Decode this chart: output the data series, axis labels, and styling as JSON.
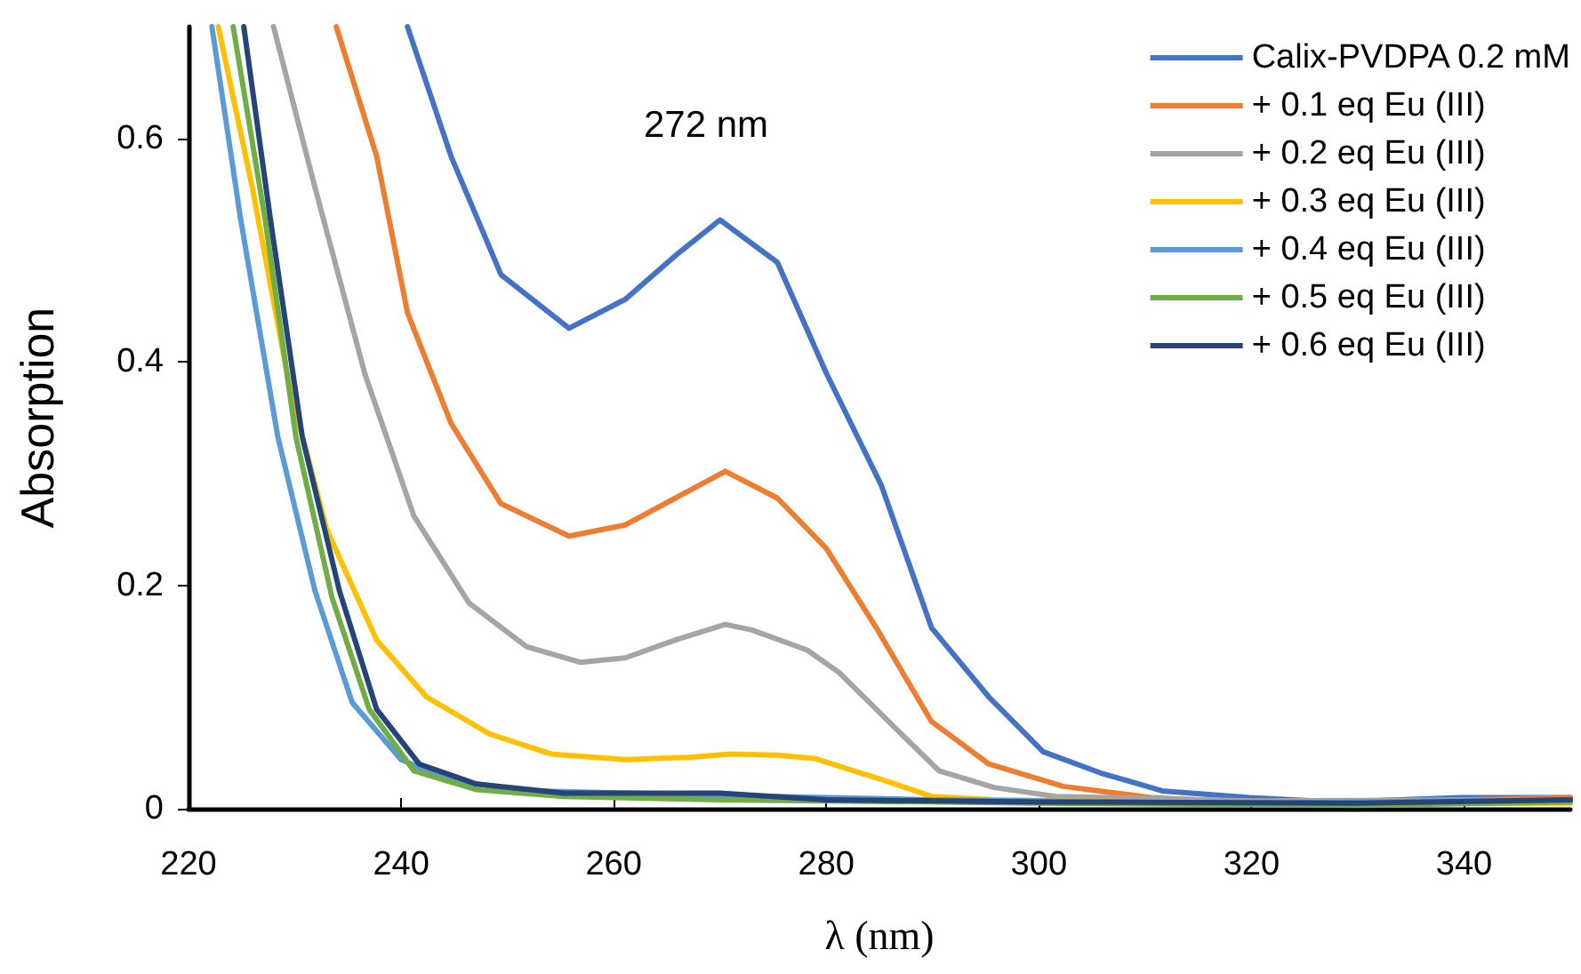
{
  "chart_data": {
    "type": "line",
    "xlabel": "λ (nm)",
    "ylabel": "Absorption",
    "xlim": [
      220,
      350
    ],
    "xticks": [
      220,
      240,
      260,
      280,
      300,
      320,
      340
    ],
    "ylim": [
      0,
      0.7
    ],
    "yticks": [
      0,
      0.2,
      0.4,
      0.6
    ],
    "grid": false,
    "legend": "top right",
    "marker": "none",
    "line_style": "solid",
    "annotations": [
      "272 nm"
    ],
    "series": [
      {
        "name": "Calix-PVDPA 0.2 mM",
        "color": "#4472c4",
        "x": [
          240.6,
          244.7,
          249.4,
          255.8,
          261.1,
          265.8,
          270,
          275.4,
          280,
          285.2,
          289.9,
          295.3,
          300.4,
          305.8,
          311.6,
          319.8,
          328,
          339.7,
          350
        ],
        "values": [
          0.7,
          0.584,
          0.478,
          0.43,
          0.456,
          0.495,
          0.527,
          0.489,
          0.39,
          0.289,
          0.162,
          0.1,
          0.051,
          0.032,
          0.016,
          0.01,
          0.006,
          0.01,
          0.01
        ]
      },
      {
        "name": "+ 0.1 eq Eu (III)",
        "color": "#ed7d31",
        "x": [
          233.9,
          237.7,
          240.6,
          244.7,
          249.4,
          255.8,
          261.1,
          265.8,
          270.5,
          275.4,
          280,
          284.7,
          289.9,
          295.3,
          302.3,
          310.5,
          319.2,
          340,
          350
        ],
        "values": [
          0.7,
          0.584,
          0.444,
          0.345,
          0.273,
          0.244,
          0.254,
          0.278,
          0.302,
          0.278,
          0.233,
          0.162,
          0.078,
          0.04,
          0.02,
          0.01,
          0.006,
          0.008,
          0.01
        ]
      },
      {
        "name": "+ 0.2 eq Eu (III)",
        "color": "#a5a5a5",
        "x": [
          228,
          231.9,
          236.6,
          241.2,
          246.4,
          251.8,
          256.9,
          261.1,
          265.8,
          270.5,
          273,
          278.2,
          281.2,
          286.4,
          290.6,
          295.8,
          301.6,
          320,
          350
        ],
        "values": [
          0.7,
          0.556,
          0.389,
          0.262,
          0.184,
          0.145,
          0.131,
          0.135,
          0.151,
          0.165,
          0.16,
          0.142,
          0.122,
          0.073,
          0.034,
          0.019,
          0.011,
          0.007,
          0.008
        ]
      },
      {
        "name": "+ 0.3 eq Eu (III)",
        "color": "#ffc000",
        "x": [
          222.8,
          226,
          229.5,
          233,
          237.7,
          242.4,
          248.3,
          254.1,
          261.1,
          267,
          271,
          275.4,
          278.9,
          285.9,
          289.9,
          295.8,
          320,
          350
        ],
        "values": [
          0.7,
          0.556,
          0.378,
          0.25,
          0.151,
          0.1,
          0.067,
          0.049,
          0.044,
          0.046,
          0.049,
          0.048,
          0.045,
          0.024,
          0.011,
          0.008,
          0.005,
          0.005
        ]
      },
      {
        "name": "+ 0.4 eq Eu (III)",
        "color": "#5b9bd5",
        "x": [
          222.2,
          224.9,
          228.4,
          231.9,
          235.4,
          240,
          244.7,
          252.3,
          270,
          290,
          320,
          350
        ],
        "values": [
          0.7,
          0.528,
          0.333,
          0.195,
          0.095,
          0.044,
          0.025,
          0.016,
          0.012,
          0.008,
          0.005,
          0.008
        ]
      },
      {
        "name": "+ 0.5 eq Eu (III)",
        "color": "#70ad47",
        "x": [
          224.2,
          227.2,
          230.1,
          233.5,
          237,
          241.2,
          247.1,
          255.3,
          270,
          300,
          330,
          350
        ],
        "values": [
          0.7,
          0.528,
          0.333,
          0.189,
          0.089,
          0.034,
          0.017,
          0.011,
          0.008,
          0.005,
          0.003,
          0.006
        ]
      },
      {
        "name": "+ 0.6 eq Eu (III)",
        "color": "#264478",
        "x": [
          225.2,
          227.7,
          230.7,
          234.2,
          237.7,
          241.7,
          247.1,
          255.3,
          270,
          280,
          300,
          330,
          350
        ],
        "values": [
          0.7,
          0.528,
          0.333,
          0.195,
          0.089,
          0.04,
          0.022,
          0.014,
          0.014,
          0.008,
          0.006,
          0.005,
          0.008
        ]
      }
    ]
  }
}
